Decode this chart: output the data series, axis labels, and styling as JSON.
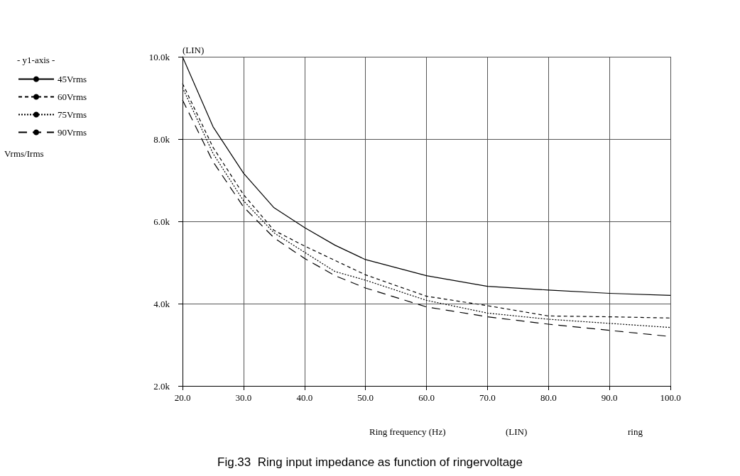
{
  "chart_data": {
    "type": "line",
    "title": "Fig.33  Ring input impedance as function of ringervoltage",
    "xlabel": "Ring frequency (Hz)",
    "legend_title": "- y1-axis -",
    "annotations": [
      "(LIN)",
      "(LIN)",
      "ring",
      "Vrms/Irms"
    ],
    "x": [
      20,
      25,
      30,
      35,
      40,
      45,
      50,
      60,
      70,
      80,
      90,
      100
    ],
    "series": [
      {
        "name": "45Vrms",
        "color": "#000000",
        "line_style": "solid",
        "values": [
          10000,
          8300,
          7170,
          6330,
          5850,
          5420,
          5070,
          4680,
          4420,
          4330,
          4250,
          4200
        ]
      },
      {
        "name": "60Vrms",
        "color": "#000000",
        "line_style": "dashed",
        "values": [
          9350,
          7800,
          6650,
          5780,
          5400,
          5050,
          4700,
          4180,
          3950,
          3700,
          3680,
          3650
        ]
      },
      {
        "name": "75Vrms",
        "color": "#000000",
        "line_style": "dotted",
        "values": [
          9250,
          7650,
          6500,
          5720,
          5250,
          4780,
          4570,
          4080,
          3770,
          3620,
          3520,
          3420
        ]
      },
      {
        "name": "90Vrms",
        "color": "#000000",
        "line_style": "dashed",
        "values": [
          8950,
          7450,
          6350,
          5600,
          5100,
          4680,
          4380,
          3920,
          3680,
          3500,
          3350,
          3200
        ]
      }
    ],
    "xlim": [
      20,
      100
    ],
    "xticks": [
      {
        "value": 20,
        "label": "20.0"
      },
      {
        "value": 30,
        "label": "30.0"
      },
      {
        "value": 40,
        "label": "40.0"
      },
      {
        "value": 50,
        "label": "50.0"
      },
      {
        "value": 60,
        "label": "60.0"
      },
      {
        "value": 70,
        "label": "70.0"
      },
      {
        "value": 80,
        "label": "80.0"
      },
      {
        "value": 90,
        "label": "90.0"
      },
      {
        "value": 100,
        "label": "100.0"
      }
    ],
    "ylim": [
      2000,
      10000
    ],
    "yticks": [
      {
        "value": 2000,
        "label": "2.0k"
      },
      {
        "value": 4000,
        "label": "4.0k"
      },
      {
        "value": 6000,
        "label": "6.0k"
      },
      {
        "value": 8000,
        "label": "8.0k"
      },
      {
        "value": 10000,
        "label": "10.0k"
      }
    ],
    "grid": true,
    "legend": "left",
    "marker": "none"
  }
}
